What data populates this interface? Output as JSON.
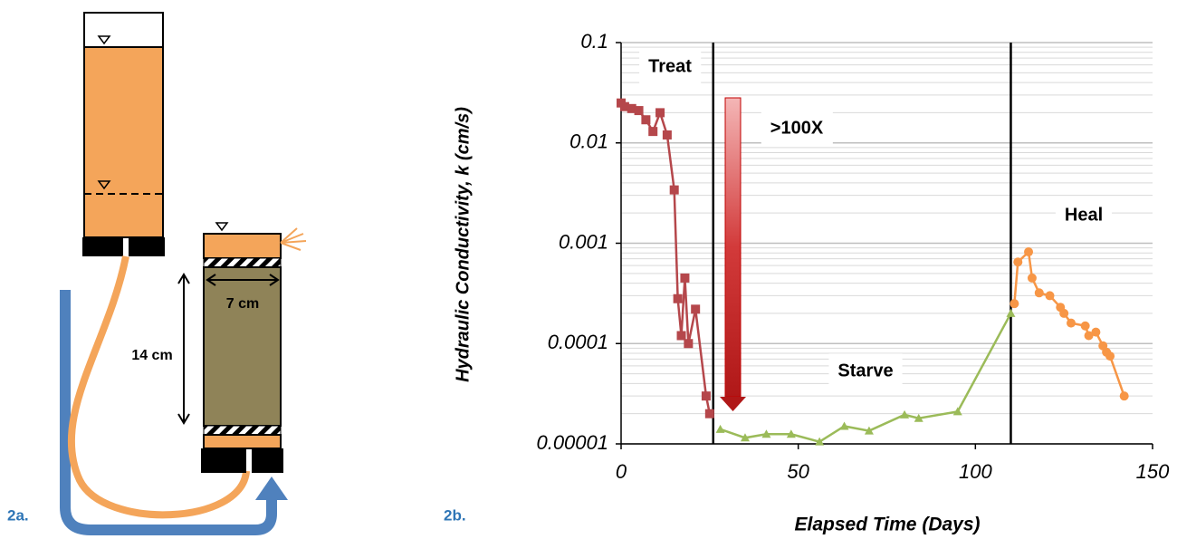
{
  "diagram": {
    "panel_label": "2a.",
    "height_label": "14 cm",
    "width_label": "7 cm"
  },
  "chart_data": {
    "type": "line",
    "panel_label": "2b.",
    "x_label": "Elapsed Time (Days)",
    "y_label": "Hydraulic Conductivity, k (cm/s)",
    "log_y": true,
    "grid": true,
    "xlim": [
      0,
      150
    ],
    "xticks": [
      0,
      50,
      100,
      150
    ],
    "ylim": [
      1e-05,
      0.1
    ],
    "yticks": [
      0.1,
      0.01,
      0.001,
      0.0001,
      1e-05
    ],
    "phase_lines": [
      26,
      110
    ],
    "annotations": [
      "Treat",
      ">100X",
      "Starve",
      "Heal"
    ],
    "series": [
      {
        "name": "Treat",
        "color": "#b5474b",
        "marker": "square",
        "x": [
          0,
          1,
          3,
          5,
          7,
          9,
          11,
          13,
          15,
          16,
          17,
          18,
          19,
          21,
          24,
          25
        ],
        "values": [
          0.025,
          0.023,
          0.022,
          0.021,
          0.017,
          0.013,
          0.02,
          0.012,
          0.0034,
          0.00028,
          0.00012,
          0.00045,
          0.0001,
          0.00022,
          3e-05,
          2e-05
        ]
      },
      {
        "name": "Starve",
        "color": "#9bbb59",
        "marker": "triangle",
        "x": [
          28,
          35,
          41,
          48,
          56,
          63,
          70,
          80,
          84,
          95,
          110
        ],
        "values": [
          1.4e-05,
          1.15e-05,
          1.25e-05,
          1.25e-05,
          1.05e-05,
          1.5e-05,
          1.35e-05,
          1.95e-05,
          1.8e-05,
          2.1e-05,
          0.0002
        ]
      },
      {
        "name": "Heal",
        "color": "#f79646",
        "marker": "circle",
        "x": [
          111,
          112,
          115,
          116,
          118,
          121,
          124,
          125,
          127,
          131,
          132,
          134,
          136,
          137,
          138,
          142
        ],
        "values": [
          0.00025,
          0.00065,
          0.00082,
          0.00045,
          0.00032,
          0.0003,
          0.00023,
          0.0002,
          0.00016,
          0.00015,
          0.00012,
          0.00013,
          9.5e-05,
          8.2e-05,
          7.5e-05,
          3e-05
        ]
      }
    ]
  }
}
